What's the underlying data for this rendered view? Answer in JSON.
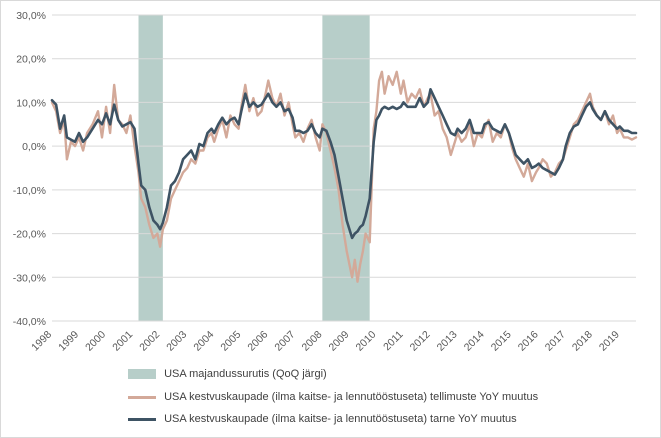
{
  "chart_data": {
    "type": "line",
    "title": "",
    "xlabel": "",
    "ylabel": "",
    "x_range": [
      1998.0,
      2019.6
    ],
    "ylim": [
      -40,
      30
    ],
    "y_ticks": [
      -40,
      -30,
      -20,
      -10,
      0,
      10,
      20,
      30
    ],
    "y_tick_labels": [
      "-40,0%",
      "-30,0%",
      "-20,0%",
      "-10,0%",
      "0,0%",
      "10,0%",
      "20,0%",
      "30,0%"
    ],
    "x_ticks": [
      1998,
      1999,
      2000,
      2001,
      2002,
      2003,
      2004,
      2005,
      2006,
      2007,
      2008,
      2009,
      2010,
      2011,
      2012,
      2013,
      2014,
      2015,
      2016,
      2017,
      2018,
      2019
    ],
    "x_tick_labels": [
      "1998",
      "1999",
      "2000",
      "2001",
      "2002",
      "2003",
      "2004",
      "2005",
      "2006",
      "2007",
      "2008",
      "2009",
      "2010",
      "2011",
      "2012",
      "2013",
      "2014",
      "2015",
      "2016",
      "2017",
      "2018",
      "2019"
    ],
    "grid": "horizontal",
    "legend_position": "bottom",
    "recessions": {
      "name": "USA majandussurutis (QoQ järgi)",
      "color": "#b7cec9",
      "periods": [
        [
          2001.2,
          2002.1
        ],
        [
          2008.0,
          2009.75
        ]
      ]
    },
    "series": [
      {
        "name": "USA kestvuskaupade (ilma kaitse- ja lennutööstuseta) tellimuste YoY muutus",
        "color": "#d3a999",
        "x": [
          1998.0,
          1998.15,
          1998.3,
          1998.45,
          1998.55,
          1998.7,
          1998.85,
          1999.0,
          1999.15,
          1999.3,
          1999.5,
          1999.7,
          1999.85,
          2000.0,
          2000.15,
          2000.3,
          2000.45,
          2000.6,
          2000.75,
          2000.9,
          2001.05,
          2001.2,
          2001.3,
          2001.45,
          2001.6,
          2001.75,
          2001.9,
          2002.0,
          2002.1,
          2002.25,
          2002.4,
          2002.55,
          2002.7,
          2002.85,
          2003.0,
          2003.15,
          2003.3,
          2003.45,
          2003.6,
          2003.75,
          2003.9,
          2004.0,
          2004.15,
          2004.3,
          2004.45,
          2004.6,
          2004.75,
          2004.9,
          2005.0,
          2005.15,
          2005.3,
          2005.45,
          2005.6,
          2005.75,
          2005.9,
          2006.0,
          2006.15,
          2006.3,
          2006.45,
          2006.6,
          2006.75,
          2006.9,
          2007.0,
          2007.15,
          2007.3,
          2007.45,
          2007.6,
          2007.75,
          2007.9,
          2008.0,
          2008.15,
          2008.3,
          2008.45,
          2008.6,
          2008.75,
          2008.9,
          2009.0,
          2009.1,
          2009.2,
          2009.3,
          2009.4,
          2009.5,
          2009.6,
          2009.75,
          2009.9,
          2010.0,
          2010.1,
          2010.2,
          2010.3,
          2010.45,
          2010.6,
          2010.75,
          2010.9,
          2011.0,
          2011.15,
          2011.3,
          2011.45,
          2011.6,
          2011.75,
          2011.9,
          2012.0,
          2012.15,
          2012.3,
          2012.45,
          2012.6,
          2012.75,
          2012.9,
          2013.0,
          2013.15,
          2013.3,
          2013.45,
          2013.6,
          2013.75,
          2013.9,
          2014.0,
          2014.15,
          2014.3,
          2014.45,
          2014.6,
          2014.75,
          2014.9,
          2015.0,
          2015.15,
          2015.3,
          2015.45,
          2015.6,
          2015.75,
          2015.9,
          2016.0,
          2016.15,
          2016.3,
          2016.45,
          2016.6,
          2016.75,
          2016.9,
          2017.0,
          2017.15,
          2017.3,
          2017.45,
          2017.6,
          2017.75,
          2017.9,
          2018.0,
          2018.15,
          2018.3,
          2018.45,
          2018.6,
          2018.75,
          2018.9,
          2019.0,
          2019.15,
          2019.3,
          2019.45,
          2019.6
        ],
        "values": [
          10.0,
          8.0,
          3.0,
          6.0,
          -3.0,
          1.0,
          0.0,
          2.0,
          -1.0,
          3.0,
          5.0,
          8.0,
          2.0,
          9.0,
          3.0,
          14.0,
          6.0,
          5.0,
          3.0,
          7.0,
          0.0,
          -6.0,
          -12.0,
          -14.0,
          -18.0,
          -21.0,
          -20.0,
          -23.0,
          -19.0,
          -17.0,
          -12.0,
          -10.0,
          -8.0,
          -6.0,
          -5.0,
          -3.0,
          -4.0,
          -1.0,
          -1.0,
          2.0,
          3.0,
          1.0,
          4.0,
          6.0,
          2.0,
          7.0,
          5.0,
          4.0,
          9.0,
          14.0,
          8.0,
          11.0,
          7.0,
          8.0,
          12.0,
          15.0,
          11.0,
          9.0,
          12.0,
          7.0,
          10.0,
          5.0,
          2.0,
          3.0,
          1.0,
          4.0,
          6.0,
          2.0,
          -1.0,
          5.0,
          3.0,
          -1.0,
          -5.0,
          -10.0,
          -18.0,
          -24.0,
          -27.0,
          -30.0,
          -26.0,
          -31.0,
          -27.0,
          -24.0,
          -20.0,
          -22.0,
          4.0,
          8.0,
          15.0,
          17.0,
          12.0,
          16.0,
          14.0,
          17.0,
          12.0,
          15.0,
          10.0,
          12.0,
          11.0,
          13.0,
          9.0,
          11.0,
          12.0,
          7.0,
          8.0,
          4.0,
          2.0,
          -2.0,
          1.0,
          3.0,
          1.0,
          2.0,
          5.0,
          0.0,
          3.0,
          2.0,
          4.0,
          6.0,
          1.0,
          3.0,
          2.0,
          5.0,
          3.0,
          0.0,
          -3.0,
          -5.0,
          -7.0,
          -4.0,
          -8.0,
          -6.0,
          -5.0,
          -3.0,
          -4.0,
          -7.0,
          -6.0,
          -4.0,
          -3.0,
          -1.0,
          2.0,
          5.0,
          6.0,
          8.0,
          10.0,
          12.0,
          9.0,
          7.0,
          6.0,
          8.0,
          5.0,
          7.0,
          3.0,
          4.0,
          2.0,
          2.0,
          1.5,
          2.0
        ]
      },
      {
        "name": "USA kestvuskaupade (ilma kaitse- ja lennutööstuseta) tarne YoY muutus",
        "color": "#3e5364",
        "x": [
          1998.0,
          1998.15,
          1998.3,
          1998.45,
          1998.55,
          1998.7,
          1998.85,
          1999.0,
          1999.15,
          1999.3,
          1999.5,
          1999.7,
          1999.85,
          2000.0,
          2000.15,
          2000.3,
          2000.45,
          2000.6,
          2000.75,
          2000.9,
          2001.05,
          2001.2,
          2001.3,
          2001.45,
          2001.6,
          2001.75,
          2001.9,
          2002.0,
          2002.1,
          2002.25,
          2002.4,
          2002.55,
          2002.7,
          2002.85,
          2003.0,
          2003.15,
          2003.3,
          2003.45,
          2003.6,
          2003.75,
          2003.9,
          2004.0,
          2004.15,
          2004.3,
          2004.45,
          2004.6,
          2004.75,
          2004.9,
          2005.0,
          2005.15,
          2005.3,
          2005.45,
          2005.6,
          2005.75,
          2005.9,
          2006.0,
          2006.15,
          2006.3,
          2006.45,
          2006.6,
          2006.75,
          2006.9,
          2007.0,
          2007.15,
          2007.3,
          2007.45,
          2007.6,
          2007.75,
          2007.9,
          2008.0,
          2008.15,
          2008.3,
          2008.45,
          2008.6,
          2008.75,
          2008.9,
          2009.0,
          2009.1,
          2009.2,
          2009.3,
          2009.4,
          2009.5,
          2009.6,
          2009.75,
          2009.9,
          2010.0,
          2010.1,
          2010.2,
          2010.3,
          2010.45,
          2010.6,
          2010.75,
          2010.9,
          2011.0,
          2011.15,
          2011.3,
          2011.45,
          2011.6,
          2011.75,
          2011.9,
          2012.0,
          2012.15,
          2012.3,
          2012.45,
          2012.6,
          2012.75,
          2012.9,
          2013.0,
          2013.15,
          2013.3,
          2013.45,
          2013.6,
          2013.75,
          2013.9,
          2014.0,
          2014.15,
          2014.3,
          2014.45,
          2014.6,
          2014.75,
          2014.9,
          2015.0,
          2015.15,
          2015.3,
          2015.45,
          2015.6,
          2015.75,
          2015.9,
          2016.0,
          2016.15,
          2016.3,
          2016.45,
          2016.6,
          2016.75,
          2016.9,
          2017.0,
          2017.15,
          2017.3,
          2017.45,
          2017.6,
          2017.75,
          2017.9,
          2018.0,
          2018.15,
          2018.3,
          2018.45,
          2018.6,
          2018.75,
          2018.9,
          2019.0,
          2019.15,
          2019.3,
          2019.45,
          2019.6
        ],
        "values": [
          10.5,
          9.5,
          4.0,
          7.0,
          2.0,
          1.5,
          1.0,
          3.0,
          1.0,
          2.0,
          4.0,
          6.0,
          5.0,
          7.5,
          5.0,
          9.5,
          6.0,
          4.5,
          5.0,
          5.5,
          4.0,
          -4.0,
          -9.0,
          -10.0,
          -14.0,
          -17.0,
          -18.0,
          -19.0,
          -17.5,
          -14.0,
          -9.0,
          -8.0,
          -6.0,
          -3.0,
          -2.0,
          -1.0,
          -3.0,
          0.5,
          0.0,
          3.0,
          4.0,
          3.0,
          5.0,
          6.5,
          5.0,
          6.0,
          6.5,
          5.0,
          8.0,
          12.0,
          9.0,
          10.0,
          9.0,
          9.5,
          11.0,
          12.0,
          10.0,
          9.0,
          10.0,
          8.0,
          8.5,
          6.5,
          3.5,
          3.5,
          3.0,
          3.5,
          5.0,
          3.0,
          2.0,
          4.0,
          3.5,
          1.0,
          -2.0,
          -7.0,
          -12.0,
          -17.0,
          -19.0,
          -21.0,
          -20.0,
          -19.5,
          -18.5,
          -18.0,
          -16.0,
          -12.0,
          1.0,
          6.0,
          7.0,
          8.5,
          9.0,
          8.5,
          9.0,
          8.5,
          9.0,
          10.0,
          9.0,
          9.0,
          9.0,
          11.0,
          9.0,
          10.0,
          13.0,
          11.0,
          9.0,
          7.0,
          5.0,
          3.0,
          2.5,
          4.0,
          3.0,
          4.0,
          6.0,
          3.0,
          3.0,
          3.0,
          5.0,
          5.5,
          4.0,
          3.5,
          3.0,
          5.0,
          3.0,
          1.0,
          -2.0,
          -3.0,
          -4.0,
          -3.0,
          -5.0,
          -4.5,
          -4.0,
          -5.0,
          -5.5,
          -6.0,
          -6.5,
          -5.0,
          -3.0,
          0.0,
          3.0,
          4.5,
          5.0,
          7.0,
          9.0,
          10.0,
          8.5,
          7.0,
          6.0,
          8.0,
          6.0,
          5.0,
          4.0,
          4.5,
          3.5,
          3.5,
          3.0,
          3.0
        ]
      }
    ]
  }
}
